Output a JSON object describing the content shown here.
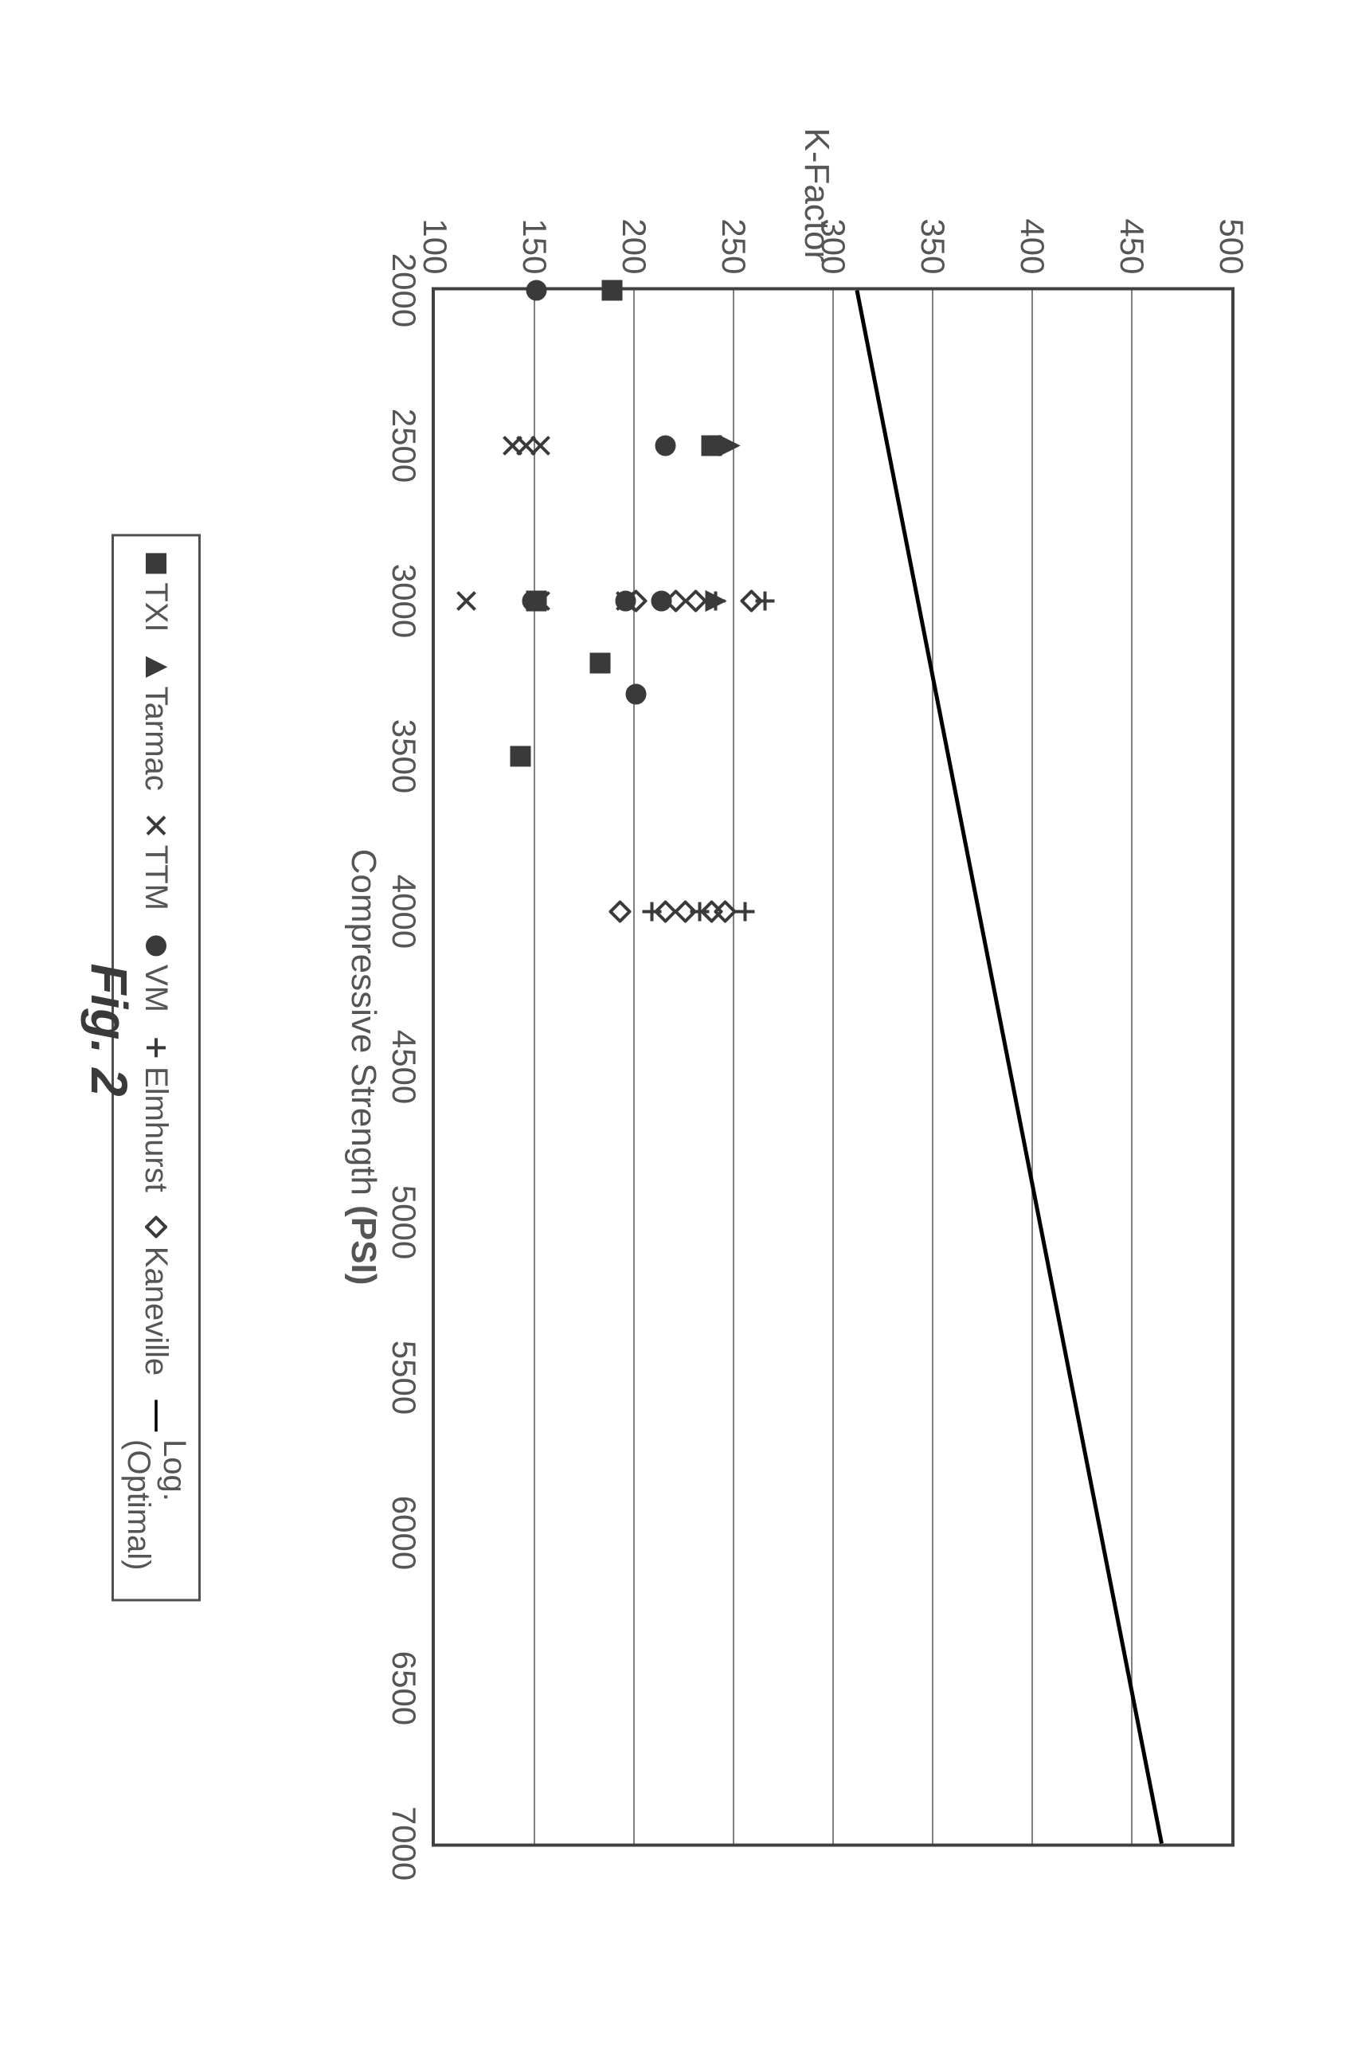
{
  "chart": {
    "type": "scatter",
    "caption": "Fig. 2",
    "x_axis": {
      "label_prefix": "Compressive Strength ",
      "label_bold": "(PSI)",
      "min": 2000,
      "max": 7000,
      "tick_step": 500
    },
    "y_axis": {
      "label": "K-Factor",
      "min": 100,
      "max": 500,
      "tick_step": 50
    },
    "colors": {
      "border": "#404040",
      "grid": "#808080",
      "text": "#555555",
      "marker_stroke": "#3a3a3a",
      "marker_fill_dark": "#3a3a3a",
      "trend": "#000000",
      "background": "#ffffff"
    },
    "stroke_width": 4,
    "marker_size": 28,
    "trend_line": {
      "x1": 2000,
      "y1": 312,
      "x2": 7000,
      "y2": 465,
      "width": 5
    },
    "series": [
      {
        "name": "TXI",
        "marker": "filled-square",
        "points": [
          [
            2000,
            188
          ],
          [
            2500,
            238
          ],
          [
            3000,
            150
          ],
          [
            3200,
            182
          ],
          [
            3500,
            142
          ]
        ]
      },
      {
        "name": "Tarmac",
        "marker": "filled-triangle",
        "points": [
          [
            2500,
            247
          ],
          [
            3000,
            240
          ]
        ]
      },
      {
        "name": "TTM",
        "marker": "x",
        "points": [
          [
            2500,
            152
          ],
          [
            2500,
            145
          ],
          [
            2500,
            138
          ],
          [
            3000,
            152
          ],
          [
            3000,
            115
          ],
          [
            3000,
            195
          ]
        ]
      },
      {
        "name": "VM",
        "marker": "filled-circle",
        "points": [
          [
            2000,
            150
          ],
          [
            2500,
            215
          ],
          [
            3000,
            213
          ],
          [
            3000,
            148
          ],
          [
            3000,
            195
          ],
          [
            3300,
            200
          ]
        ]
      },
      {
        "name": "Elmhurst",
        "marker": "plus",
        "points": [
          [
            3000,
            265
          ],
          [
            3000,
            240
          ],
          [
            4000,
            255
          ],
          [
            4000,
            232
          ],
          [
            4000,
            208
          ]
        ]
      },
      {
        "name": "Kaneville",
        "marker": "diamond",
        "points": [
          [
            3000,
            258
          ],
          [
            3000,
            230
          ],
          [
            3000,
            220
          ],
          [
            3000,
            200
          ],
          [
            4000,
            245
          ],
          [
            4000,
            238
          ],
          [
            4000,
            225
          ],
          [
            4000,
            215
          ],
          [
            4000,
            192
          ]
        ]
      }
    ],
    "legend_trend": "Log. (Optimal)"
  }
}
